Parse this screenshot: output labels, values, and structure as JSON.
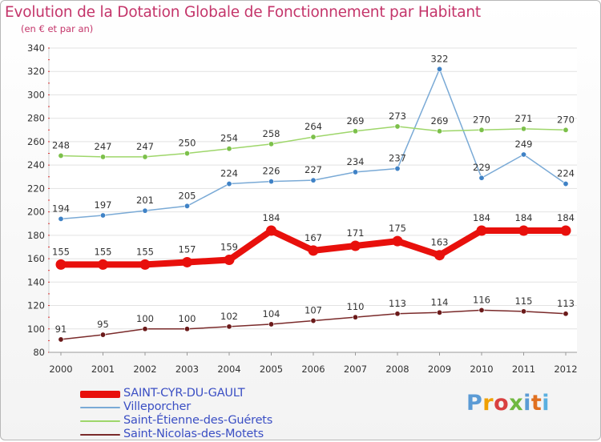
{
  "header": {
    "title": "Evolution de la Dotation Globale de Fonctionnement par Habitant",
    "subtitle": "(en € et par an)"
  },
  "brand": {
    "text": "Proxiti",
    "letter_colors": [
      "#5b9bd5",
      "#f0a000",
      "#d94040",
      "#70b840",
      "#5b9bd5",
      "#e07020",
      "#5bb0e0"
    ]
  },
  "chart_data": {
    "type": "line",
    "title": "Evolution de la Dotation Globale de Fonctionnement par Habitant",
    "subtitle": "(en € et par an)",
    "xlabel": "",
    "ylabel": "",
    "x": [
      2000,
      2001,
      2002,
      2003,
      2004,
      2005,
      2006,
      2007,
      2008,
      2009,
      2010,
      2011,
      2012
    ],
    "ylim": [
      80,
      340
    ],
    "yticks": [
      80,
      100,
      120,
      140,
      160,
      180,
      200,
      220,
      240,
      260,
      280,
      300,
      320,
      340
    ],
    "grid": "horizontal",
    "legend": "bottom-left",
    "series": [
      {
        "name": "SAINT-CYR-DU-GAULT",
        "color": "#e8100c",
        "dot_color": "#e8100c",
        "label_color": "#333333",
        "emphasis": true,
        "values": [
          155,
          155,
          155,
          157,
          159,
          184,
          167,
          171,
          175,
          163,
          184,
          184,
          184
        ]
      },
      {
        "name": "Villeporcher",
        "color": "#7aaad6",
        "dot_color": "#3f82c6",
        "label_color": "#333333",
        "emphasis": false,
        "values": [
          194,
          197,
          201,
          205,
          224,
          226,
          227,
          234,
          237,
          322,
          229,
          249,
          224
        ]
      },
      {
        "name": "Saint-Étienne-des-Guérets",
        "color": "#9ed66a",
        "dot_color": "#7cc04a",
        "label_color": "#333333",
        "emphasis": false,
        "values": [
          248,
          247,
          247,
          250,
          254,
          258,
          264,
          269,
          273,
          269,
          270,
          271,
          270
        ]
      },
      {
        "name": "Saint-Nicolas-des-Motets",
        "color": "#7a2a2a",
        "dot_color": "#6b1a1a",
        "label_color": "#333333",
        "emphasis": false,
        "values": [
          91,
          95,
          100,
          100,
          102,
          104,
          107,
          110,
          113,
          114,
          116,
          115,
          113
        ]
      }
    ]
  }
}
